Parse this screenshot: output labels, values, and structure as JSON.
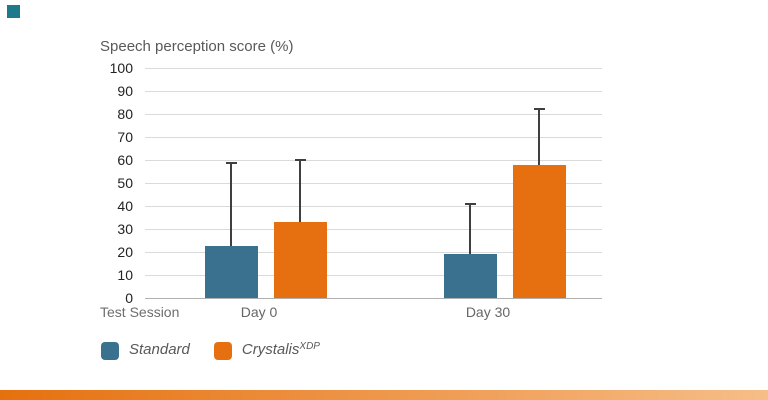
{
  "page": {
    "background": "#FFFFFF"
  },
  "decor": {
    "corner_square_color": "#1D7A8C",
    "bottom_bar_colors": [
      "#E6700E",
      "#F6BE88"
    ]
  },
  "colors": {
    "gridline": "#DADADA",
    "axis_line": "#B0B0B0",
    "error_bar": "#3F3F3F",
    "title_text": "#595959",
    "tick_text": "#222222",
    "axis_label_text": "#666666"
  },
  "chart_data": {
    "type": "bar",
    "title": "Speech perception score (%)",
    "xlabel": "Test Session",
    "ylabel": "Speech perception score (%)",
    "categories": [
      "Day 0",
      "Day 30"
    ],
    "y_ticks": [
      100,
      90,
      80,
      70,
      60,
      50,
      40,
      30,
      20,
      10,
      0
    ],
    "ylim": [
      0,
      100
    ],
    "grid": true,
    "legend_position": "bottom-left",
    "error_bars": "upper-only with caps",
    "series": [
      {
        "name": "Standard",
        "color": "#39718F",
        "values": [
          22.5,
          19
        ],
        "error_upper": [
          58.5,
          41
        ]
      },
      {
        "name": "Crystalis XDP",
        "color": "#E6700F",
        "values": [
          33,
          58
        ],
        "error_upper": [
          60,
          82
        ]
      }
    ]
  },
  "legend": {
    "items": [
      {
        "label": "Standard",
        "sup": "",
        "color": "#39718F"
      },
      {
        "label": "Crystalis",
        "sup": "XDP",
        "color": "#E6700F"
      }
    ]
  }
}
